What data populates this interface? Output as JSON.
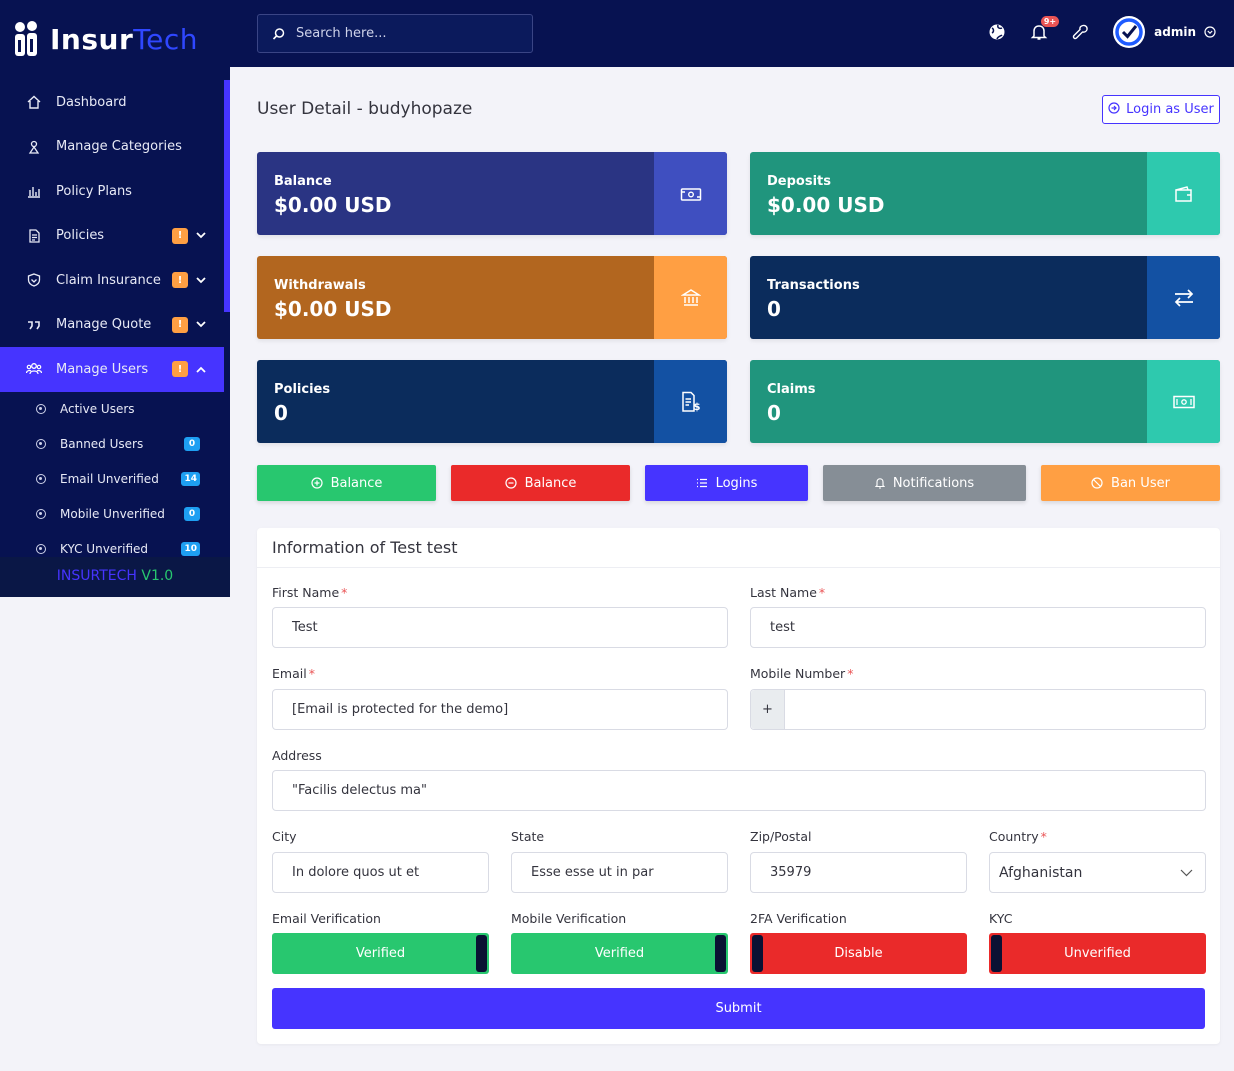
{
  "brand": {
    "name_part1": "Insur",
    "name_part2": "Tech"
  },
  "sidebar": {
    "items": [
      {
        "label": "Dashboard",
        "icon": "home-icon"
      },
      {
        "label": "Manage Categories",
        "icon": "tree-icon"
      },
      {
        "label": "Policy Plans",
        "icon": "chart-icon"
      },
      {
        "label": "Policies",
        "icon": "document-icon",
        "badge": "!"
      },
      {
        "label": "Claim Insurance",
        "icon": "shield-icon",
        "badge": "!"
      },
      {
        "label": "Manage Quote",
        "icon": "quote-icon",
        "badge": "!"
      },
      {
        "label": "Manage Users",
        "icon": "users-icon",
        "badge": "!"
      }
    ],
    "sub_items": [
      {
        "label": "Active Users"
      },
      {
        "label": "Banned Users",
        "count": "0"
      },
      {
        "label": "Email Unverified",
        "count": "14"
      },
      {
        "label": "Mobile Unverified",
        "count": "0"
      },
      {
        "label": "KYC Unverified",
        "count": "10"
      }
    ],
    "version_part1": "INSURTECH",
    "version_part2": "V1.0"
  },
  "topbar": {
    "search_placeholder": "Search here...",
    "notification_count": "9+",
    "admin_name": "admin"
  },
  "page": {
    "title": "User Detail - budyhopaze",
    "login_as_user": "Login as User"
  },
  "widgets": [
    {
      "title": "Balance",
      "value": "$0.00 USD",
      "icon": "money-icon"
    },
    {
      "title": "Deposits",
      "value": "$0.00 USD",
      "icon": "wallet-icon"
    },
    {
      "title": "Withdrawals",
      "value": "$0.00 USD",
      "icon": "bank-icon"
    },
    {
      "title": "Transactions",
      "value": "0",
      "icon": "exchange-icon"
    },
    {
      "title": "Policies",
      "value": "0",
      "icon": "invoice-icon"
    },
    {
      "title": "Claims",
      "value": "0",
      "icon": "cash-icon"
    }
  ],
  "actions": {
    "add_balance": "Balance",
    "sub_balance": "Balance",
    "logins": "Logins",
    "notifications": "Notifications",
    "ban_user": "Ban User"
  },
  "form": {
    "heading": "Information of Test test",
    "first_name_label": "First Name",
    "first_name": "Test",
    "last_name_label": "Last Name",
    "last_name": "test",
    "email_label": "Email",
    "email": "[Email is protected for the demo]",
    "mobile_label": "Mobile Number",
    "mobile_prefix": "+",
    "mobile": "",
    "address_label": "Address",
    "address": "\"Facilis delectus ma\"",
    "city_label": "City",
    "city": "In dolore quos ut et",
    "state_label": "State",
    "state": "Esse esse ut in par",
    "zip_label": "Zip/Postal",
    "zip": "35979",
    "country_label": "Country",
    "country": "Afghanistan",
    "email_verification_label": "Email Verification",
    "email_verification": "Verified",
    "mobile_verification_label": "Mobile Verification",
    "mobile_verification": "Verified",
    "twofa_label": "2FA Verification",
    "twofa": "Disable",
    "kyc_label": "KYC",
    "kyc": "Unverified",
    "submit": "Submit"
  },
  "colors": {
    "sidebar_bg": "#071251",
    "accent": "#4634ff",
    "success": "#28c76f",
    "danger": "#ea2a2a",
    "warning": "#ff9f43"
  }
}
